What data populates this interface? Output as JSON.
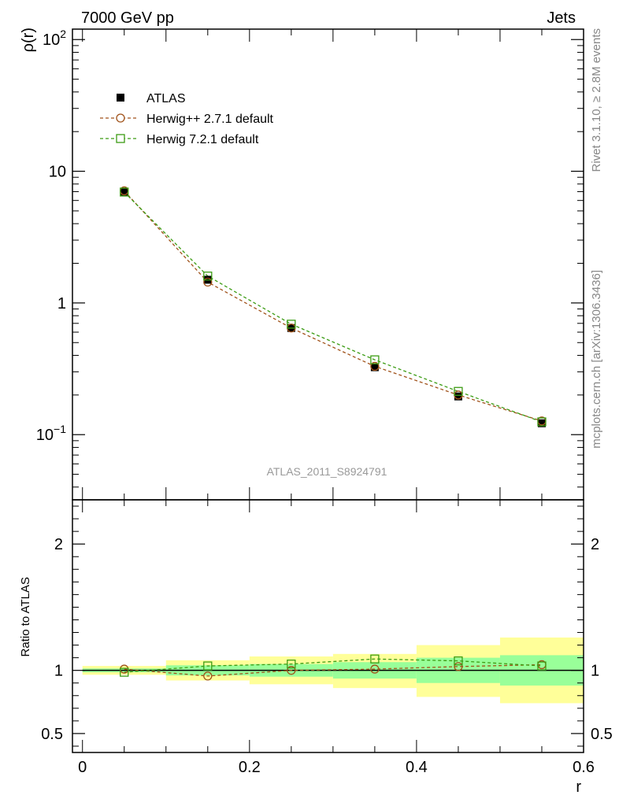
{
  "header": {
    "left": "7000 GeV pp",
    "right": "Jets"
  },
  "side_labels": {
    "rivet": "Rivet 3.1.10, ≥ 2.8M events",
    "mcplots": "mcplots.cern.ch [arXiv:1306.3436]"
  },
  "watermark": "ATLAS_2011_S8924791",
  "colors": {
    "data": "#000000",
    "herwigpp": "#a0521a",
    "herwig7": "#3c9c14",
    "band_inner": "#99ff99",
    "band_outer": "#ffff99"
  },
  "chart_data": [
    {
      "type": "scatter",
      "ylabel": "ρ(r)",
      "xlabel": "r",
      "xlim": [
        -0.012,
        0.6
      ],
      "ylim": [
        0.032,
        120
      ],
      "yscale": "log",
      "yticks": [
        {
          "value": 100,
          "base": "10",
          "exp": "2"
        },
        {
          "value": 10,
          "base": "10",
          "exp": ""
        },
        {
          "value": 1,
          "base": "1",
          "exp": ""
        },
        {
          "value": 0.1,
          "base": "10",
          "exp": "−1"
        }
      ],
      "legend_position": "top-left",
      "x": [
        0.05,
        0.15,
        0.25,
        0.35,
        0.45,
        0.55
      ],
      "series": [
        {
          "name": "ATLAS",
          "style": "data",
          "values": [
            7.0,
            1.5,
            0.645,
            0.325,
            0.195,
            0.122
          ]
        },
        {
          "name": "Herwig++ 2.7.1 default",
          "style": "herwigpp",
          "values": [
            7.1,
            1.44,
            0.645,
            0.33,
            0.2,
            0.127
          ]
        },
        {
          "name": "Herwig 7.2.1 default",
          "style": "herwig7",
          "values": [
            6.95,
            1.6,
            0.69,
            0.37,
            0.213,
            0.125
          ]
        }
      ]
    },
    {
      "type": "line",
      "ylabel": "Ratio to ATLAS",
      "xlabel": "r",
      "xlim": [
        -0.012,
        0.6
      ],
      "ylim": [
        0.35,
        2.35
      ],
      "xticks": [
        {
          "value": 0,
          "label": "0"
        },
        {
          "value": 0.2,
          "label": "0.2"
        },
        {
          "value": 0.4,
          "label": "0.4"
        },
        {
          "value": 0.6,
          "label": "0.6"
        }
      ],
      "yticks": [
        {
          "value": 0.5,
          "label": "0.5"
        },
        {
          "value": 1,
          "label": "1"
        },
        {
          "value": 2,
          "label": "2"
        }
      ],
      "bins": [
        [
          0.0,
          0.1
        ],
        [
          0.1,
          0.2
        ],
        [
          0.2,
          0.3
        ],
        [
          0.3,
          0.4
        ],
        [
          0.4,
          0.5
        ],
        [
          0.5,
          0.6
        ]
      ],
      "band_inner": [
        [
          0.985,
          1.015
        ],
        [
          0.96,
          1.04
        ],
        [
          0.95,
          1.05
        ],
        [
          0.935,
          1.065
        ],
        [
          0.9,
          1.1
        ],
        [
          0.88,
          1.12
        ]
      ],
      "band_outer": [
        [
          0.965,
          1.035
        ],
        [
          0.92,
          1.08
        ],
        [
          0.89,
          1.11
        ],
        [
          0.86,
          1.13
        ],
        [
          0.79,
          1.2
        ],
        [
          0.74,
          1.26
        ]
      ],
      "x": [
        0.05,
        0.15,
        0.25,
        0.35,
        0.45,
        0.55
      ],
      "series": [
        {
          "name": "Herwig++ 2.7.1 default",
          "style": "herwigpp",
          "values": [
            1.01,
            0.955,
            1.0,
            1.01,
            1.03,
            1.045
          ]
        },
        {
          "name": "Herwig 7.2.1 default",
          "style": "herwig7",
          "values": [
            0.985,
            1.035,
            1.05,
            1.09,
            1.075,
            1.035
          ]
        }
      ]
    }
  ]
}
